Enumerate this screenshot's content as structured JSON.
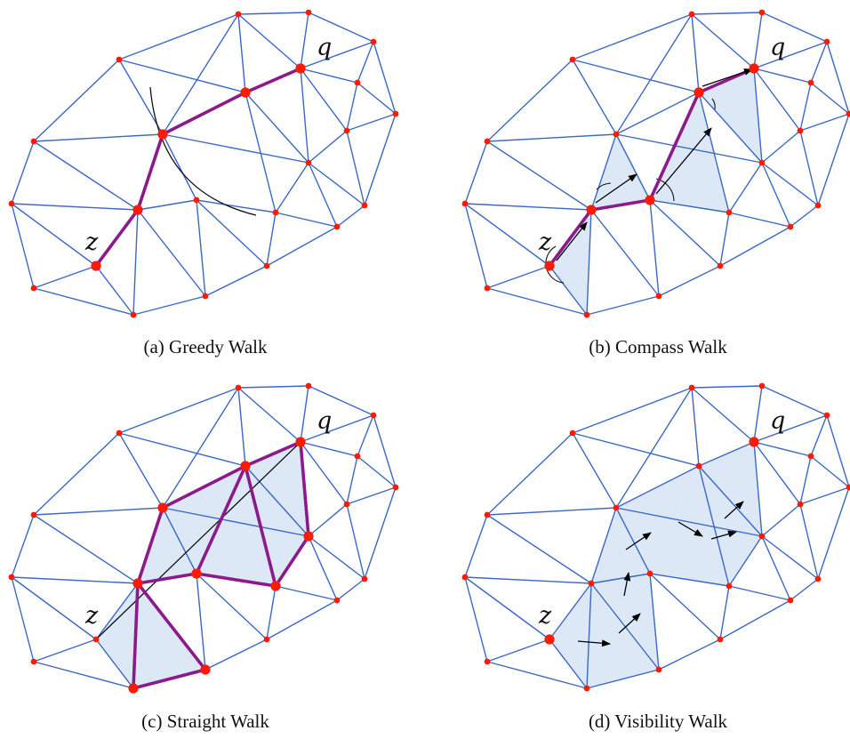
{
  "figure": {
    "point_labels": {
      "start": "z",
      "query": "q"
    },
    "panels": [
      {
        "id": "a",
        "caption": "(a) Greedy Walk"
      },
      {
        "id": "b",
        "caption": "(b) Compass Walk"
      },
      {
        "id": "c",
        "caption": "(c) Straight Walk"
      },
      {
        "id": "d",
        "caption": "(d) Visibility Walk"
      }
    ]
  },
  "colors": {
    "edge": "#3a68c4",
    "vertex": "#ff1a00",
    "path": "#8b1a8b",
    "shade": "#dde8f7",
    "arrow": "#000000",
    "background": "#ffffff"
  }
}
